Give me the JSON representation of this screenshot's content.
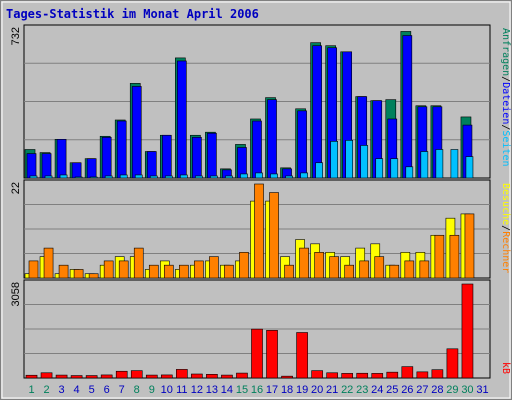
{
  "window": {
    "title": "Tages-Statistik im Monat April 2006"
  },
  "legend": {
    "panel1": [
      "Anfragen",
      "/",
      "Dateien",
      "/",
      "Seiten"
    ],
    "panel2": [
      "Besuche",
      "/",
      "Rechner"
    ],
    "panel3": [
      "kB"
    ]
  },
  "colors": {
    "background": "#c0c0c0",
    "title": "#0000c0",
    "anfragen": "#00805c",
    "dateien": "#0000ff",
    "seiten": "#00c0ff",
    "besuche": "#ffff00",
    "rechner": "#ff8000",
    "kb": "#ff0000",
    "weekday": "#0000c0",
    "weekend": "#00805c"
  },
  "chart_data": [
    {
      "type": "bar",
      "x": [
        1,
        2,
        3,
        4,
        5,
        6,
        7,
        8,
        9,
        10,
        11,
        12,
        13,
        14,
        15,
        16,
        17,
        18,
        19,
        20,
        21,
        22,
        23,
        24,
        25,
        26,
        27,
        28,
        29,
        30,
        31
      ],
      "weekend_days": [
        1,
        2,
        8,
        9,
        15,
        16,
        22,
        23,
        29,
        30
      ],
      "ymax_label": "732",
      "ylim": [
        0,
        732
      ],
      "series": [
        {
          "name": "Anfragen",
          "values": [
            140,
            125,
            190,
            75,
            95,
            205,
            285,
            465,
            130,
            210,
            590,
            210,
            225,
            45,
            165,
            290,
            395,
            50,
            340,
            665,
            650,
            620,
            400,
            380,
            385,
            720,
            355,
            355,
            0,
            300,
            0
          ]
        },
        {
          "name": "Dateien",
          "values": [
            120,
            120,
            190,
            75,
            95,
            200,
            280,
            450,
            130,
            210,
            575,
            200,
            220,
            40,
            150,
            280,
            385,
            45,
            330,
            650,
            640,
            620,
            400,
            380,
            290,
            700,
            350,
            350,
            0,
            260,
            0
          ]
        },
        {
          "name": "Seiten",
          "values": [
            10,
            10,
            15,
            5,
            5,
            10,
            15,
            15,
            10,
            10,
            15,
            10,
            10,
            10,
            20,
            25,
            20,
            10,
            25,
            75,
            180,
            185,
            160,
            95,
            95,
            55,
            130,
            140,
            140,
            105,
            0
          ]
        }
      ]
    },
    {
      "type": "bar",
      "x": [
        1,
        2,
        3,
        4,
        5,
        6,
        7,
        8,
        9,
        10,
        11,
        12,
        13,
        14,
        15,
        16,
        17,
        18,
        19,
        20,
        21,
        22,
        23,
        24,
        25,
        26,
        27,
        28,
        29,
        30,
        31
      ],
      "ymax_label": "22",
      "ylim": [
        0,
        22
      ],
      "series": [
        {
          "name": "Besuche",
          "values": [
            1,
            5,
            1,
            2,
            1,
            3,
            5,
            5,
            2,
            4,
            2,
            3,
            4,
            3,
            4,
            18,
            18,
            5,
            9,
            8,
            6,
            5,
            7,
            8,
            3,
            6,
            6,
            10,
            14,
            15,
            0
          ]
        },
        {
          "name": "Rechner",
          "values": [
            4,
            7,
            3,
            2,
            1,
            4,
            4,
            7,
            3,
            3,
            3,
            4,
            5,
            3,
            6,
            22,
            20,
            3,
            7,
            6,
            5,
            3,
            4,
            5,
            3,
            4,
            4,
            10,
            10,
            15,
            0
          ]
        }
      ]
    },
    {
      "type": "bar",
      "x": [
        1,
        2,
        3,
        4,
        5,
        6,
        7,
        8,
        9,
        10,
        11,
        12,
        13,
        14,
        15,
        16,
        17,
        18,
        19,
        20,
        21,
        22,
        23,
        24,
        25,
        26,
        27,
        28,
        29,
        30,
        31
      ],
      "ymax_label": "3058",
      "ylim": [
        0,
        3058
      ],
      "series": [
        {
          "name": "kB",
          "values": [
            90,
            170,
            95,
            80,
            80,
            100,
            220,
            240,
            95,
            100,
            280,
            130,
            120,
            95,
            160,
            1590,
            1550,
            60,
            1480,
            240,
            170,
            150,
            155,
            150,
            190,
            370,
            200,
            270,
            950,
            3058,
            0
          ]
        }
      ]
    }
  ]
}
